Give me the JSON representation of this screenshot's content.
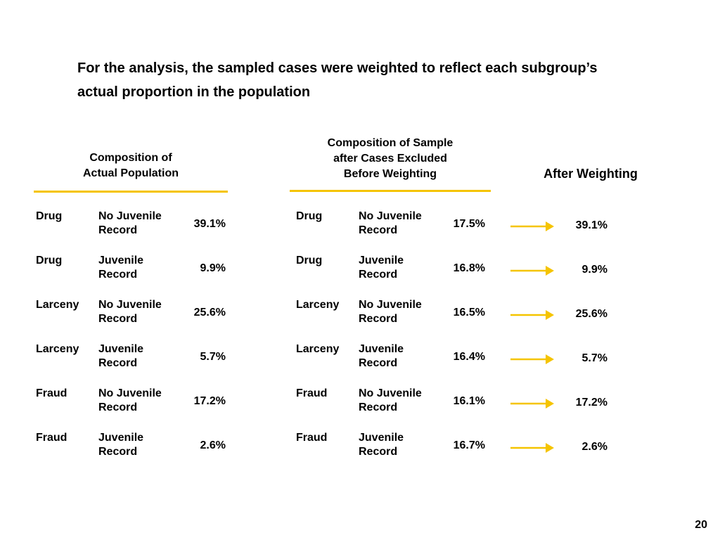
{
  "title": "For the analysis, the sampled cases were weighted to reflect each subgroup’s actual proportion in the population",
  "headers": {
    "population": [
      "Composition of",
      "Actual Population"
    ],
    "sample": [
      "Composition of Sample",
      "after Cases Excluded",
      "Before Weighting"
    ],
    "after": "After Weighting"
  },
  "colors": {
    "accent": "#f5c400",
    "text": "#000000"
  },
  "population_rows": [
    {
      "category": "Drug",
      "record": [
        "No Juvenile",
        "Record"
      ],
      "pct": "39.1%"
    },
    {
      "category": "Drug",
      "record": [
        "Juvenile",
        "Record"
      ],
      "pct": "9.9%"
    },
    {
      "category": "Larceny",
      "record": [
        "No Juvenile",
        "Record"
      ],
      "pct": "25.6%"
    },
    {
      "category": "Larceny",
      "record": [
        "Juvenile",
        "Record"
      ],
      "pct": "5.7%"
    },
    {
      "category": "Fraud",
      "record": [
        "No Juvenile",
        "Record"
      ],
      "pct": "17.2%"
    },
    {
      "category": "Fraud",
      "record": [
        "Juvenile",
        "Record"
      ],
      "pct": "2.6%"
    }
  ],
  "sample_rows": [
    {
      "category": "Drug",
      "record": [
        "No Juvenile",
        "Record"
      ],
      "pct": "17.5%"
    },
    {
      "category": "Drug",
      "record": [
        "Juvenile",
        "Record"
      ],
      "pct": "16.8%"
    },
    {
      "category": "Larceny",
      "record": [
        "No Juvenile",
        "Record"
      ],
      "pct": "16.5%"
    },
    {
      "category": "Larceny",
      "record": [
        "Juvenile",
        "Record"
      ],
      "pct": "16.4%"
    },
    {
      "category": "Fraud",
      "record": [
        "No Juvenile",
        "Record"
      ],
      "pct": "16.1%"
    },
    {
      "category": "Fraud",
      "record": [
        "Juvenile",
        "Record"
      ],
      "pct": "16.7%"
    }
  ],
  "after_weighting": [
    "39.1%",
    "9.9%",
    "25.6%",
    "5.7%",
    "17.2%",
    "2.6%"
  ],
  "arrow_icon": "right-arrow-icon",
  "page_number": "20"
}
